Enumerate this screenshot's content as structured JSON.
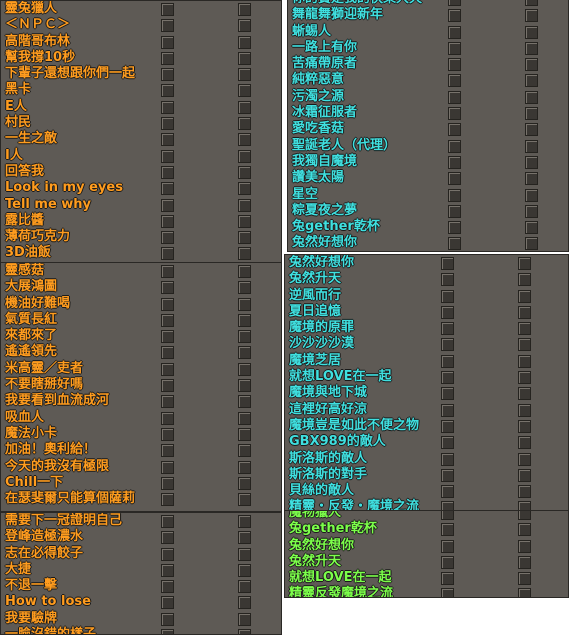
{
  "colors": {
    "orange": "#ff9c1e",
    "cyan": "#3fe0e0",
    "green": "#7cff4a"
  },
  "panels": [
    {
      "id": "p1",
      "color": "orange",
      "items": [
        "靈兔獵人",
        "＜ＮＰＣ＞",
        "高階哥布林",
        "幫我撐10秒",
        "下輩子還想跟你們一起",
        "黑卡",
        "E人",
        "村民",
        "一生之敵",
        "I人",
        "回答我",
        "Look in my eyes",
        "Tell me why",
        "露比醬",
        "薄荷巧克力",
        "3D油飯"
      ]
    },
    {
      "id": "p2",
      "color": "orange",
      "items": [
        "靈感菇",
        "大展鴻圖",
        "機油好難喝",
        "氣質長紅",
        "來都來了",
        "遙遙領先",
        "米高靈／吏者",
        "不要瞎掰好嗎",
        "我要看到血流成河",
        "吸血人",
        "魔法小卡",
        "加油！奧利給！",
        "今天的我沒有極限",
        "Chill一下",
        "在瑟斐爾只能算個薩莉"
      ]
    },
    {
      "id": "p3",
      "color": "orange",
      "items": [
        "需要下一冠證明自己",
        "登峰造極濃水",
        "志在必得餃子",
        "大捷",
        "不退一擊",
        "How to lose",
        "我要驗牌",
        "一臉沒錯的樣子"
      ]
    },
    {
      "id": "p4",
      "color": "cyan",
      "items": [
        "你的寶是我的快樂大天",
        "舞龍舞獅迎新年",
        "蜥蜴人",
        "一路上有你",
        "苦痛帶原者",
        "純粹惡意",
        "污濁之源",
        "冰霜征服者",
        "愛吃香菇",
        "聖誕老人（代理）",
        "我獨自魔境",
        "讚美太陽",
        "星空",
        "粽夏夜之夢",
        "兔gether乾杯",
        "兔然好想你"
      ]
    },
    {
      "id": "p5",
      "color": "cyan",
      "items": [
        "兔然好想你",
        "兔然升天",
        "逆風而行",
        "夏日追憶",
        "魔境的原罪",
        "沙沙沙沙漠",
        "魔境芝居",
        "就想LOVE在一起",
        "魔境與地下城",
        "這裡好高好涼",
        "魔境豈是如此不便之物",
        "GBX989的敵人",
        "斯洛斯的敵人",
        "斯洛斯的對手",
        "貝絲的敵人",
        "精靈・反發・魔境之流"
      ]
    },
    {
      "id": "p6",
      "color": "green",
      "items": [
        "魔物獵人",
        "兔gether乾杯",
        "兔然好想你",
        "兔然升天",
        "就想LOVE在一起",
        "精靈反發魔境之流"
      ]
    }
  ]
}
